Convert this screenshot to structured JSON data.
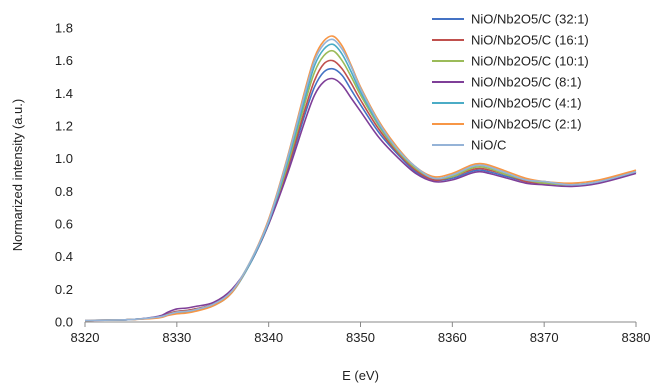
{
  "chart_data": {
    "type": "line",
    "title": "",
    "xlabel": "E (eV)",
    "ylabel": "Normarized intensity (a.u.)",
    "xlim": [
      8320,
      8380
    ],
    "ylim": [
      0,
      1.8
    ],
    "xticks": [
      "8320",
      "8330",
      "8340",
      "8350",
      "8360",
      "8370",
      "8380"
    ],
    "yticks": [
      "0.0",
      "0.2",
      "0.4",
      "0.6",
      "0.8",
      "1.0",
      "1.2",
      "1.4",
      "1.6",
      "1.8"
    ],
    "grid": false,
    "legend_position": "top-right",
    "x": [
      8320,
      8325,
      8328,
      8329,
      8330,
      8331,
      8332,
      8334,
      8336,
      8338,
      8340,
      8342,
      8344,
      8345,
      8346,
      8347,
      8348,
      8349,
      8350,
      8352,
      8354,
      8356,
      8358,
      8360,
      8362,
      8363,
      8364,
      8366,
      8368,
      8370,
      8373,
      8376,
      8380
    ],
    "series": [
      {
        "name": "NiO/Nb2O5/C (32:1)",
        "color": "#4472C4",
        "values": [
          0.01,
          0.015,
          0.03,
          0.05,
          0.065,
          0.07,
          0.08,
          0.11,
          0.19,
          0.36,
          0.6,
          0.92,
          1.28,
          1.44,
          1.53,
          1.55,
          1.51,
          1.42,
          1.33,
          1.16,
          1.03,
          0.92,
          0.87,
          0.88,
          0.92,
          0.93,
          0.92,
          0.89,
          0.86,
          0.85,
          0.84,
          0.86,
          0.92
        ]
      },
      {
        "name": "NiO/Nb2O5/C (16:1)",
        "color": "#C0504D",
        "values": [
          0.01,
          0.015,
          0.03,
          0.05,
          0.065,
          0.07,
          0.08,
          0.11,
          0.19,
          0.36,
          0.6,
          0.93,
          1.31,
          1.48,
          1.58,
          1.6,
          1.55,
          1.46,
          1.36,
          1.18,
          1.04,
          0.93,
          0.87,
          0.89,
          0.93,
          0.94,
          0.93,
          0.9,
          0.86,
          0.85,
          0.84,
          0.86,
          0.92
        ]
      },
      {
        "name": "NiO/Nb2O5/C (10:1)",
        "color": "#9BBB59",
        "values": [
          0.01,
          0.015,
          0.03,
          0.045,
          0.06,
          0.065,
          0.075,
          0.11,
          0.19,
          0.37,
          0.61,
          0.95,
          1.35,
          1.53,
          1.63,
          1.66,
          1.6,
          1.5,
          1.39,
          1.2,
          1.05,
          0.94,
          0.88,
          0.89,
          0.94,
          0.95,
          0.94,
          0.9,
          0.87,
          0.85,
          0.84,
          0.86,
          0.92
        ]
      },
      {
        "name": "NiO/Nb2O5/C (8:1)",
        "color": "#7F3F98",
        "values": [
          0.01,
          0.015,
          0.035,
          0.06,
          0.08,
          0.085,
          0.095,
          0.12,
          0.2,
          0.36,
          0.6,
          0.9,
          1.24,
          1.39,
          1.47,
          1.49,
          1.45,
          1.37,
          1.29,
          1.13,
          1.01,
          0.91,
          0.86,
          0.87,
          0.91,
          0.92,
          0.91,
          0.88,
          0.85,
          0.84,
          0.83,
          0.85,
          0.91
        ]
      },
      {
        "name": "NiO/Nb2O5/C (4:1)",
        "color": "#4BACC6",
        "values": [
          0.01,
          0.015,
          0.03,
          0.045,
          0.055,
          0.06,
          0.07,
          0.1,
          0.18,
          0.36,
          0.61,
          0.97,
          1.38,
          1.57,
          1.67,
          1.7,
          1.64,
          1.53,
          1.41,
          1.21,
          1.06,
          0.95,
          0.88,
          0.9,
          0.95,
          0.96,
          0.95,
          0.91,
          0.87,
          0.86,
          0.84,
          0.86,
          0.92
        ]
      },
      {
        "name": "NiO/Nb2O5/C (2:1)",
        "color": "#F79646",
        "values": [
          0.01,
          0.015,
          0.025,
          0.04,
          0.05,
          0.055,
          0.065,
          0.1,
          0.18,
          0.37,
          0.63,
          1.0,
          1.43,
          1.62,
          1.72,
          1.75,
          1.69,
          1.57,
          1.44,
          1.23,
          1.07,
          0.95,
          0.89,
          0.91,
          0.96,
          0.97,
          0.96,
          0.92,
          0.88,
          0.86,
          0.85,
          0.87,
          0.93
        ]
      },
      {
        "name": "NiO/C",
        "color": "#95B3D7",
        "values": [
          0.01,
          0.015,
          0.03,
          0.045,
          0.06,
          0.065,
          0.075,
          0.11,
          0.19,
          0.37,
          0.62,
          0.99,
          1.41,
          1.6,
          1.7,
          1.73,
          1.67,
          1.56,
          1.43,
          1.22,
          1.06,
          0.95,
          0.88,
          0.9,
          0.95,
          0.96,
          0.95,
          0.91,
          0.87,
          0.86,
          0.84,
          0.86,
          0.92
        ]
      }
    ]
  }
}
